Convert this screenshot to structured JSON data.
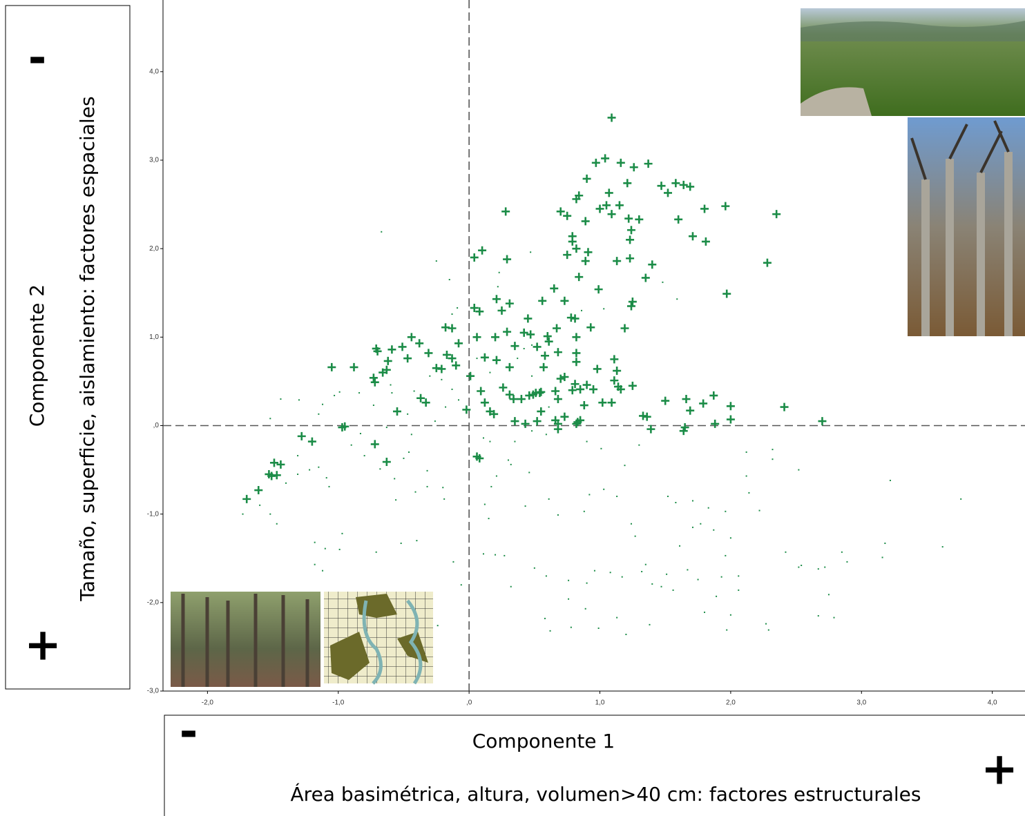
{
  "chart_data": {
    "type": "scatter",
    "xlabel": "Componente 1",
    "xlabel_description": "Área basimétrica, altura, volumen>40 cm: factores estructurales",
    "x_low_sign": "-",
    "x_high_sign": "+",
    "ylabel": "Componente 2",
    "ylabel_description": "Tamaño, superficie, aislamiento: factores espaciales",
    "y_low_sign": "+",
    "y_high_sign": "-",
    "xlim": [
      -2.34,
      4.25
    ],
    "ylim": [
      -3,
      4.81
    ],
    "xticks": [
      {
        "value": -2,
        "label": "-2,0"
      },
      {
        "value": -1,
        "label": "-1,0"
      },
      {
        "value": 0,
        "label": ",0"
      },
      {
        "value": 1,
        "label": "1,0"
      },
      {
        "value": 2,
        "label": "2,0"
      },
      {
        "value": 3,
        "label": "3,0"
      },
      {
        "value": 4,
        "label": "4,0"
      }
    ],
    "yticks": [
      {
        "value": -3,
        "label": "-3,0"
      },
      {
        "value": -2,
        "label": "-2,0"
      },
      {
        "value": -1,
        "label": "-1,0"
      },
      {
        "value": 0,
        "label": ",0"
      },
      {
        "value": 1,
        "label": "1,0"
      },
      {
        "value": 2,
        "label": "2,0"
      },
      {
        "value": 3,
        "label": "3,0"
      },
      {
        "value": 4,
        "label": "4,0"
      }
    ],
    "grid": false,
    "reference_lines": [
      {
        "axis": "x",
        "value": 0
      },
      {
        "axis": "y",
        "value": 0
      }
    ],
    "series": [
      {
        "color": "#1b8c47",
        "marker": "plus",
        "x": [
          1.09,
          1.04,
          0.97,
          1.16,
          1.26,
          1.37,
          0.9,
          1.47,
          1.58,
          1.52,
          1.64,
          1.69,
          1.21,
          1.07,
          0.84,
          0.82,
          1.15,
          1.05,
          1.0,
          0.7,
          0.28,
          1.96,
          1.8,
          2.35,
          1.09,
          1.22,
          1.3,
          1.6,
          0.75,
          0.89,
          1.24,
          1.23,
          1.71,
          1.81,
          0.79,
          0.82,
          0.79,
          0.1,
          0.04,
          0.29,
          0.75,
          0.91,
          0.89,
          1.13,
          1.23,
          1.4,
          2.28,
          0.84,
          1.35,
          0.99,
          0.65,
          1.97,
          0.21,
          0.56,
          0.73,
          0.31,
          1.25,
          1.24,
          0.04,
          0.08,
          0.25,
          0.78,
          0.81,
          0.45,
          -0.18,
          -0.13,
          1.19,
          0.93,
          0.67,
          0.42,
          0.47,
          0.29,
          0.2,
          0.06,
          0.82,
          -0.44,
          -0.38,
          -0.08,
          0.6,
          0.61,
          0.52,
          0.35,
          -0.51,
          -0.59,
          -0.71,
          -0.7,
          -0.31,
          -0.17,
          -0.13,
          0.68,
          0.58,
          0.12,
          0.82,
          1.11,
          -1.05,
          -0.88,
          -0.62,
          -0.63,
          -0.66,
          -0.47,
          -0.25,
          -0.21,
          -0.1,
          0.31,
          0.21,
          0.82,
          0.57,
          1.13,
          0.98,
          0.01,
          -0.73,
          -0.72,
          0.73,
          0.7,
          1.11,
          0.9,
          0.81,
          1.25,
          1.14,
          1.16,
          0.26,
          0.09,
          0.31,
          0.34,
          0.4,
          0.46,
          0.49,
          0.51,
          0.54,
          0.55,
          0.66,
          0.79,
          0.85,
          0.95,
          -0.37,
          -0.33,
          0.12,
          0.68,
          0.88,
          1.02,
          1.09,
          1.5,
          1.66,
          1.87,
          1.79,
          2.0,
          2.41,
          1.69,
          -0.02,
          0.16,
          0.19,
          -0.55,
          0.55,
          1.33,
          1.36,
          0.35,
          0.43,
          0.52,
          0.66,
          0.68,
          0.73,
          0.83,
          0.85,
          0.82,
          1.88,
          2.0,
          2.7,
          -0.97,
          -0.95,
          0.68,
          1.39,
          1.64,
          1.65,
          -1.28,
          -1.2,
          -0.72,
          0.06,
          0.08,
          -0.63,
          -1.49,
          -1.44,
          -1.53,
          -1.51,
          -1.47,
          -1.61,
          -1.7
        ],
        "values": [
          3.48,
          3.02,
          2.97,
          2.97,
          2.92,
          2.96,
          2.79,
          2.71,
          2.74,
          2.63,
          2.72,
          2.7,
          2.74,
          2.63,
          2.6,
          2.56,
          2.49,
          2.49,
          2.45,
          2.42,
          2.42,
          2.48,
          2.45,
          2.39,
          2.39,
          2.34,
          2.33,
          2.33,
          2.37,
          2.31,
          2.21,
          2.1,
          2.14,
          2.08,
          2.14,
          2.0,
          2.08,
          1.98,
          1.9,
          1.88,
          1.93,
          1.96,
          1.86,
          1.86,
          1.89,
          1.82,
          1.84,
          1.68,
          1.67,
          1.54,
          1.55,
          1.49,
          1.43,
          1.41,
          1.41,
          1.38,
          1.4,
          1.35,
          1.33,
          1.29,
          1.3,
          1.22,
          1.21,
          1.21,
          1.11,
          1.1,
          1.1,
          1.11,
          1.1,
          1.05,
          1.03,
          1.06,
          1.0,
          1.0,
          1.0,
          1.0,
          0.93,
          0.93,
          1.01,
          0.95,
          0.89,
          0.9,
          0.89,
          0.86,
          0.87,
          0.84,
          0.82,
          0.8,
          0.76,
          0.83,
          0.79,
          0.77,
          0.82,
          0.75,
          0.66,
          0.66,
          0.73,
          0.63,
          0.6,
          0.76,
          0.65,
          0.64,
          0.68,
          0.66,
          0.74,
          0.72,
          0.66,
          0.62,
          0.64,
          0.56,
          0.54,
          0.49,
          0.55,
          0.53,
          0.51,
          0.46,
          0.47,
          0.45,
          0.44,
          0.41,
          0.43,
          0.39,
          0.35,
          0.3,
          0.3,
          0.34,
          0.35,
          0.37,
          0.37,
          0.38,
          0.39,
          0.4,
          0.41,
          0.41,
          0.31,
          0.26,
          0.26,
          0.3,
          0.23,
          0.26,
          0.26,
          0.28,
          0.3,
          0.34,
          0.25,
          0.22,
          0.21,
          0.17,
          0.18,
          0.16,
          0.13,
          0.16,
          0.16,
          0.11,
          0.1,
          0.05,
          0.02,
          0.05,
          0.06,
          0.02,
          0.1,
          0.04,
          0.06,
          0.02,
          0.02,
          0.07,
          0.05,
          -0.02,
          -0.01,
          -0.04,
          -0.04,
          -0.06,
          -0.02,
          -0.12,
          -0.18,
          -0.21,
          -0.35,
          -0.37,
          -0.41,
          -0.42,
          -0.44,
          -0.55,
          -0.57,
          -0.56,
          -0.73,
          -0.83
        ]
      },
      {
        "color": "#1b8c47",
        "marker": "dot",
        "x": [
          3.22,
          3.76,
          3.62,
          3.18,
          3.16,
          2.85,
          2.89,
          2.72,
          2.67,
          2.54,
          2.52,
          2.42,
          2.52,
          2.12,
          2.32,
          2.32,
          2.12,
          2.14,
          2.22,
          2.75,
          2.79,
          2.67,
          2.27,
          2.29,
          1.97,
          2.0,
          1.8,
          1.89,
          2.06,
          1.96,
          2.0,
          1.87,
          1.71,
          1.77,
          1.61,
          1.56,
          1.47,
          1.38,
          1.2,
          1.13,
          0.99,
          0.78,
          0.62,
          0.58,
          0.76,
          0.89,
          0.9,
          0.76,
          0.59,
          0.5,
          0.27,
          0.32,
          0.2,
          0.11,
          -0.06,
          -0.12,
          -0.4,
          -0.52,
          -0.71,
          -0.99,
          -1.1,
          -1.18,
          -1.18,
          -1.12,
          -0.97,
          -0.56,
          -0.57,
          -0.41,
          -0.32,
          -0.2,
          -0.19,
          -0.32,
          0.12,
          0.15,
          0.17,
          0.3,
          0.32,
          0.46,
          0.43,
          0.61,
          0.68,
          0.88,
          0.92,
          1.03,
          1.13,
          1.24,
          1.27,
          1.19,
          1.3,
          1.52,
          1.71,
          1.58,
          1.96,
          1.83,
          1.93,
          1.75,
          1.67,
          1.51,
          1.32,
          1.08,
          0.96,
          1.35,
          1.4,
          1.17,
          2.06,
          -1.44,
          -1.52,
          -1.3,
          -1.15,
          -1.12,
          -1.03,
          -0.99,
          -1.31,
          -1.22,
          -1.15,
          -1.09,
          -1.07,
          -1.31,
          -1.4,
          -1.52,
          -1.73,
          -1.6,
          -1.47,
          -0.9,
          -0.83,
          -0.8,
          -0.68,
          -0.5,
          -0.46,
          -0.44,
          -0.63,
          -0.73,
          -0.84,
          -0.59,
          -0.47,
          -0.26,
          -0.18,
          -0.13,
          -0.08,
          -0.21,
          -0.3,
          -0.42,
          -0.6,
          -0.67,
          -0.25,
          -0.15,
          -0.09,
          -0.13,
          0.22,
          0.23,
          0.47,
          1.48,
          1.59,
          1.03,
          0.86,
          0.11,
          0.16,
          0.35,
          0.48,
          0.59,
          0.9,
          1.01,
          0.21,
          0.61,
          0.48,
          0.37,
          0.42,
          0.48,
          0.16,
          0.06,
          -0.35,
          -0.24
        ],
        "values": [
          -0.62,
          -0.83,
          -1.37,
          -1.33,
          -1.49,
          -1.43,
          -1.54,
          -1.6,
          -1.62,
          -1.58,
          -1.6,
          -1.43,
          -0.5,
          -0.3,
          -0.27,
          -0.38,
          -0.57,
          -0.76,
          -0.96,
          -1.91,
          -2.17,
          -2.15,
          -2.24,
          -2.31,
          -2.31,
          -2.14,
          -2.11,
          -1.93,
          -1.86,
          -1.47,
          -1.27,
          -1.18,
          -1.15,
          -1.11,
          -1.36,
          -1.86,
          -1.82,
          -2.25,
          -2.36,
          -2.17,
          -2.29,
          -2.28,
          -2.32,
          -2.18,
          -1.96,
          -2.07,
          -1.78,
          -1.75,
          -1.7,
          -1.61,
          -1.47,
          -1.82,
          -1.46,
          -1.45,
          -1.8,
          -1.54,
          -1.3,
          -1.33,
          -1.43,
          -1.4,
          -1.39,
          -1.32,
          -1.57,
          -1.64,
          -1.22,
          -0.84,
          -0.6,
          -0.75,
          -0.69,
          -0.7,
          -0.83,
          -0.51,
          -0.89,
          -1.05,
          -0.69,
          -0.39,
          -0.44,
          -0.53,
          -0.91,
          -0.83,
          -1.01,
          -0.97,
          -0.78,
          -0.72,
          -0.8,
          -1.11,
          -1.25,
          -0.45,
          -0.22,
          -0.8,
          -0.85,
          -0.87,
          -0.97,
          -0.93,
          -1.71,
          -1.74,
          -1.63,
          -1.68,
          -1.65,
          -1.66,
          -1.64,
          -1.57,
          -1.79,
          -1.71,
          -1.7,
          0.3,
          0.08,
          0.29,
          0.13,
          0.24,
          0.34,
          0.38,
          -0.34,
          -0.5,
          -0.47,
          -0.59,
          -0.69,
          -0.55,
          -0.65,
          -1.0,
          -1.0,
          -0.9,
          -1.11,
          -0.22,
          -0.09,
          -0.34,
          -0.49,
          -0.37,
          -0.3,
          -0.1,
          -0.02,
          0.23,
          0.37,
          0.37,
          0.13,
          0.05,
          0.21,
          0.41,
          0.29,
          0.52,
          0.56,
          0.39,
          0.46,
          2.19,
          1.86,
          1.65,
          1.33,
          1.26,
          1.57,
          1.73,
          1.96,
          1.62,
          1.43,
          1.32,
          1.3,
          -0.14,
          -0.18,
          -0.18,
          -0.06,
          -0.1,
          -0.18,
          -0.26,
          -0.57,
          0.21,
          0.56,
          0.76,
          0.87,
          0.91,
          0.6,
          0.76,
          -2.25,
          -2.26
        ]
      }
    ]
  }
}
